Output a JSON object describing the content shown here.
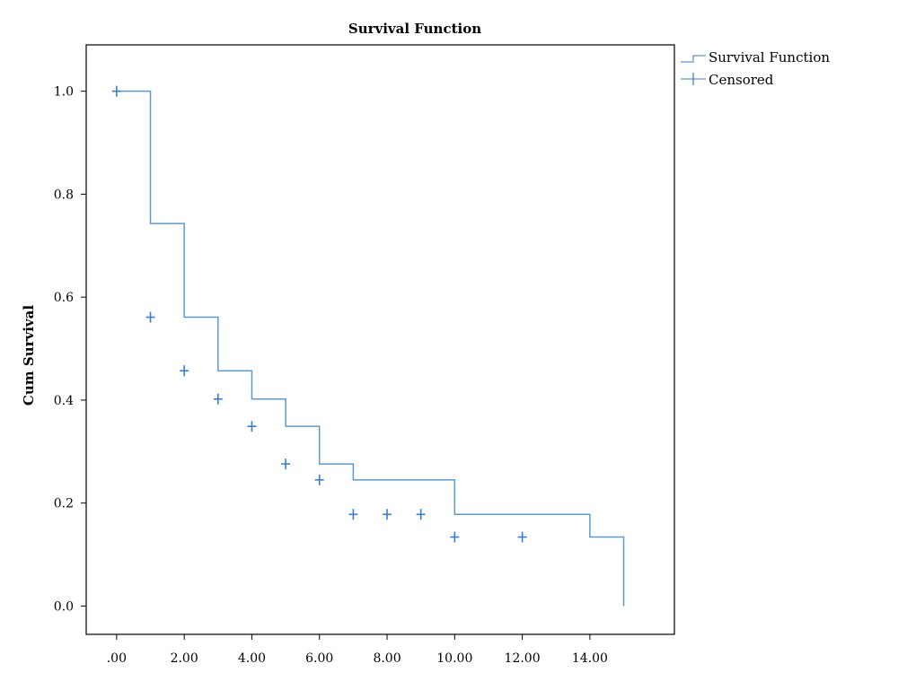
{
  "chart_data": {
    "type": "line",
    "subtype": "step",
    "title": "Survival Function",
    "xlabel": "",
    "ylabel": "Cum Survival",
    "xlim": [
      -0.9,
      16.5
    ],
    "ylim": [
      -0.055,
      1.09
    ],
    "x_ticks": [
      0,
      2,
      4,
      6,
      8,
      10,
      12,
      14
    ],
    "x_tick_labels": [
      ".00",
      "2.00",
      "4.00",
      "6.00",
      "8.00",
      "10.00",
      "12.00",
      "14.00"
    ],
    "y_ticks": [
      0,
      0.2,
      0.4,
      0.6,
      0.8,
      1.0
    ],
    "y_tick_labels": [
      "0.0",
      "0.2",
      "0.4",
      "0.6",
      "0.8",
      "1.0"
    ],
    "grid": false,
    "legend_position": "outside-top-right",
    "series": [
      {
        "name": "Survival Function",
        "color": "#5b9bd5",
        "x": [
          0,
          1,
          2,
          3,
          4,
          5,
          6,
          7,
          10,
          14,
          15
        ],
        "y": [
          1.0,
          0.743,
          0.561,
          0.457,
          0.402,
          0.349,
          0.276,
          0.245,
          0.178,
          0.134,
          0.067
        ],
        "end": {
          "x": 15,
          "y": 0.0
        }
      },
      {
        "name": "Censored",
        "color": "#3a7fd0",
        "marker": "+",
        "x": [
          0,
          1,
          2,
          3,
          4,
          5,
          6,
          7,
          8,
          9,
          10,
          12
        ],
        "y": [
          1.0,
          0.561,
          0.457,
          0.402,
          0.349,
          0.276,
          0.245,
          0.178,
          0.178,
          0.178,
          0.134,
          0.134
        ]
      }
    ]
  },
  "legend": {
    "items": [
      {
        "label": "Survival Function"
      },
      {
        "label": "Censored"
      }
    ]
  }
}
